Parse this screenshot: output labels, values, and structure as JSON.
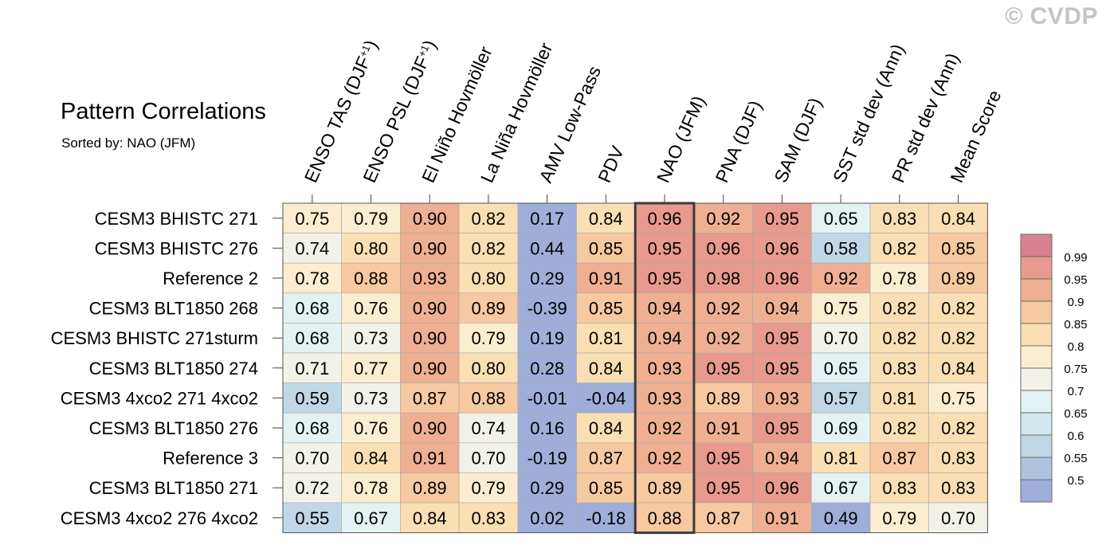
{
  "watermark": "© CVDP",
  "chart_data": {
    "type": "heatmap",
    "title": "Pattern Correlations",
    "subtitle": "Sorted by: NAO (JFM)",
    "columns": [
      "ENSO TAS (DJF+1)",
      "ENSO PSL (DJF+1)",
      "El Niño Hovmöller",
      "La Niña Hovmöller",
      "AMV Low-Pass",
      "PDV",
      "NAO (JFM)",
      "PNA (DJF)",
      "SAM (DJF)",
      "SST std dev (Ann)",
      "PR std dev (Ann)",
      "Mean Score"
    ],
    "highlight_column": "NAO (JFM)",
    "rows": [
      "CESM3 BHISTC 271",
      "CESM3 BHISTC 276",
      "Reference 2",
      "CESM3 BLT1850 268",
      "CESM3 BHISTC 271sturm",
      "CESM3 BLT1850 274",
      "CESM3 4xco2 271 4xco2",
      "CESM3 BLT1850 276",
      "Reference 3",
      "CESM3 BLT1850 271",
      "CESM3 4xco2 276 4xco2"
    ],
    "values": [
      [
        0.75,
        0.79,
        0.9,
        0.82,
        0.17,
        0.84,
        0.96,
        0.92,
        0.95,
        0.65,
        0.83,
        0.84
      ],
      [
        0.74,
        0.8,
        0.9,
        0.82,
        0.44,
        0.85,
        0.95,
        0.96,
        0.96,
        0.58,
        0.82,
        0.85
      ],
      [
        0.78,
        0.88,
        0.93,
        0.8,
        0.29,
        0.91,
        0.95,
        0.98,
        0.96,
        0.92,
        0.78,
        0.89
      ],
      [
        0.68,
        0.76,
        0.9,
        0.89,
        -0.39,
        0.85,
        0.94,
        0.92,
        0.94,
        0.75,
        0.82,
        0.82
      ],
      [
        0.68,
        0.73,
        0.9,
        0.79,
        0.19,
        0.81,
        0.94,
        0.92,
        0.95,
        0.7,
        0.82,
        0.82
      ],
      [
        0.71,
        0.77,
        0.9,
        0.8,
        0.28,
        0.84,
        0.93,
        0.95,
        0.95,
        0.65,
        0.83,
        0.84
      ],
      [
        0.59,
        0.73,
        0.87,
        0.88,
        -0.01,
        -0.04,
        0.93,
        0.89,
        0.93,
        0.57,
        0.81,
        0.75
      ],
      [
        0.68,
        0.76,
        0.9,
        0.74,
        0.16,
        0.84,
        0.92,
        0.91,
        0.95,
        0.69,
        0.82,
        0.82
      ],
      [
        0.7,
        0.84,
        0.91,
        0.7,
        -0.19,
        0.87,
        0.92,
        0.95,
        0.94,
        0.81,
        0.87,
        0.83
      ],
      [
        0.72,
        0.78,
        0.89,
        0.79,
        0.29,
        0.85,
        0.89,
        0.95,
        0.96,
        0.67,
        0.83,
        0.83
      ],
      [
        0.55,
        0.67,
        0.84,
        0.83,
        0.02,
        -0.18,
        0.88,
        0.87,
        0.91,
        0.49,
        0.79,
        0.7
      ]
    ],
    "colorbar": {
      "levels": [
        "0.5",
        "0.55",
        "0.6",
        "0.65",
        "0.7",
        "0.75",
        "0.8",
        "0.85",
        "0.9",
        "0.95",
        "0.99"
      ],
      "colors": [
        "#9eaed8",
        "#afc3de",
        "#c0d8e6",
        "#d2e7ee",
        "#e5f2f3",
        "#f3f2e9",
        "#fbeed0",
        "#fadfb4",
        "#f6c9a1",
        "#efaf93",
        "#e79a8d",
        "#d78191"
      ]
    }
  }
}
